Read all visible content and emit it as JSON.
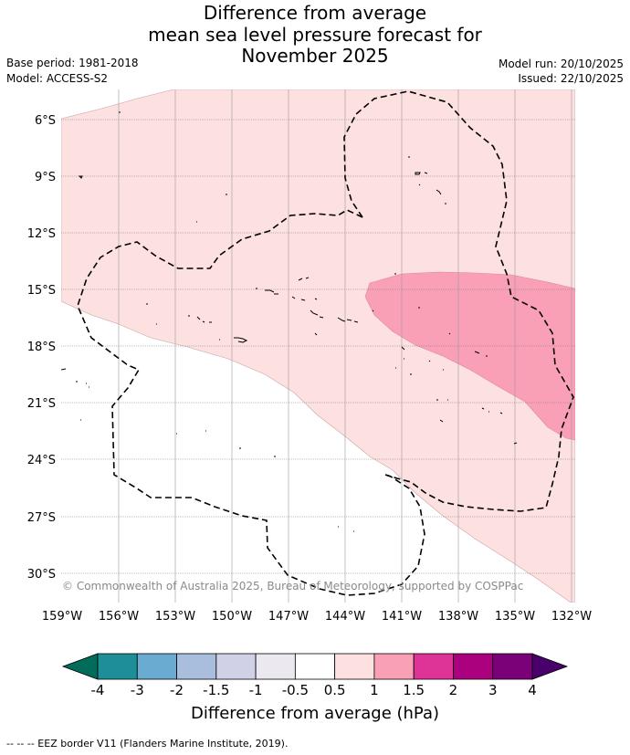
{
  "title": {
    "line1": "Difference from average",
    "line2": "mean sea level pressure forecast for",
    "line3": "November 2025"
  },
  "meta": {
    "base_period": "Base period: 1981-2018",
    "model": "Model: ACCESS-S2",
    "model_run": "Model run: 20/10/2025",
    "issued": "Issued: 22/10/2025"
  },
  "map": {
    "lat_labels": [
      "6°S",
      "9°S",
      "12°S",
      "15°S",
      "18°S",
      "21°S",
      "24°S",
      "27°S",
      "30°S"
    ],
    "lon_labels": [
      "159°W",
      "156°W",
      "153°W",
      "150°W",
      "147°W",
      "144°W",
      "141°W",
      "138°W",
      "135°W",
      "132°W"
    ],
    "copyright": "© Commonwealth of Australia 2025, Bureau of Meteorology, supported by COSPPac"
  },
  "legend": {
    "tick_labels": [
      "-4",
      "-3",
      "-2",
      "-1.5",
      "-1",
      "-0.5",
      "0.5",
      "1",
      "1.5",
      "2",
      "3",
      "4"
    ],
    "colors": [
      "#1e8f99",
      "#6aabd2",
      "#a9bddc",
      "#d0d1e6",
      "#ebe8ef",
      "#ffffff",
      "#fde0e0",
      "#f99fb6",
      "#de3497",
      "#ac017e",
      "#7a0177"
    ],
    "extend_low_color": "#016c59",
    "extend_high_color": "#49006a",
    "label": "Difference from average (hPa)"
  },
  "footnote": "--  --  -- EEZ border V11 (Flanders Marine Institute, 2019)."
}
